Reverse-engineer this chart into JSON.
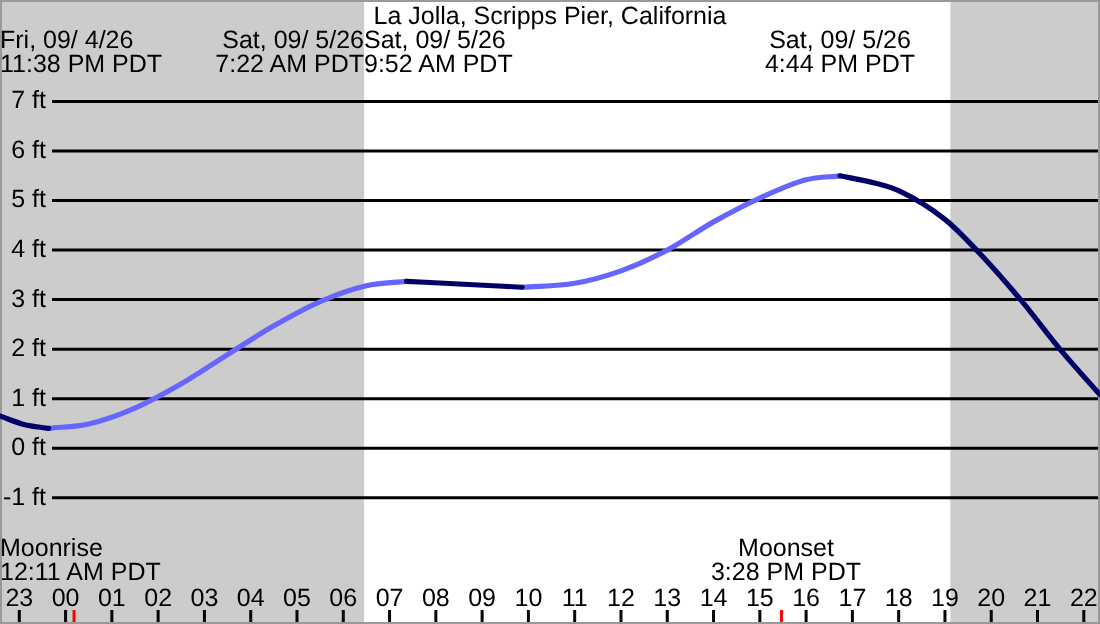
{
  "chart_data": {
    "type": "line",
    "title": "La Jolla, Scripps Pier, California",
    "xlim": [
      "--09-04T22:35",
      "--09-05T22:21"
    ],
    "ylim": [
      -3.55,
      9.05
    ],
    "xticks": [
      {
        "value": "--09-04T23:00",
        "label": "23"
      },
      {
        "value": "--09-05T00:00",
        "label": "00"
      },
      {
        "value": "--09-05T00:11",
        "label": null
      },
      {
        "value": "--09-05T01:00",
        "label": "01"
      },
      {
        "value": "--09-05T02:00",
        "label": "02"
      },
      {
        "value": "--09-05T03:00",
        "label": "03"
      },
      {
        "value": "--09-05T04:00",
        "label": "04"
      },
      {
        "value": "--09-05T05:00",
        "label": "05"
      },
      {
        "value": "--09-05T06:00",
        "label": "06"
      },
      {
        "value": "--09-05T07:00",
        "label": "07"
      },
      {
        "value": "--09-05T08:00",
        "label": "08"
      },
      {
        "value": "--09-05T09:00",
        "label": "09"
      },
      {
        "value": "--09-05T10:00",
        "label": "10"
      },
      {
        "value": "--09-05T11:00",
        "label": "11"
      },
      {
        "value": "--09-05T12:00",
        "label": "12"
      },
      {
        "value": "--09-05T13:00",
        "label": "13"
      },
      {
        "value": "--09-05T14:00",
        "label": "14"
      },
      {
        "value": "--09-05T15:00",
        "label": "15"
      },
      {
        "value": "--09-05T15:28",
        "label": null
      },
      {
        "value": "--09-05T16:00",
        "label": "16"
      },
      {
        "value": "--09-05T17:00",
        "label": "17"
      },
      {
        "value": "--09-05T18:00",
        "label": "18"
      },
      {
        "value": "--09-05T19:00",
        "label": "19"
      },
      {
        "value": "--09-05T20:00",
        "label": "20"
      },
      {
        "value": "--09-05T21:00",
        "label": "21"
      },
      {
        "value": "--09-05T22:00",
        "label": "22"
      }
    ],
    "yticks": [
      {
        "value": -1,
        "label": "-1 ft"
      },
      {
        "value": 0,
        "label": "0 ft"
      },
      {
        "value": 1,
        "label": "1 ft"
      },
      {
        "value": 2,
        "label": "2 ft"
      },
      {
        "value": 3,
        "label": "3 ft"
      },
      {
        "value": 4,
        "label": "4 ft"
      },
      {
        "value": 5,
        "label": "5 ft"
      },
      {
        "value": 6,
        "label": "6 ft"
      },
      {
        "value": 7,
        "label": "7 ft"
      }
    ],
    "grid": "y",
    "series": [
      {
        "color": "#000066",
        "x": [
          "--09-04T22:35",
          "--09-04T23:06",
          "--09-04T23:38",
          null,
          "--09-05T07:22",
          "--09-05T08:36",
          "--09-05T09:52",
          null,
          "--09-05T16:44",
          "--09-05T17:30",
          "--09-05T18:00",
          "--09-05T19:00",
          "--09-05T19:41",
          "--09-05T20:38",
          "--09-05T21:29",
          "--09-05T22:21"
        ],
        "values": [
          0.65,
          0.48,
          0.4,
          null,
          3.37,
          3.31,
          3.25,
          null,
          5.5,
          5.35,
          5.2,
          4.62,
          4.0,
          3.0,
          2.0,
          1.08
        ]
      },
      {
        "color": "#6666ff",
        "x": [
          "--09-04T23:38",
          "--09-05T00:30",
          "--09-05T01:30",
          "--09-05T02:30",
          "--09-05T03:30",
          "--09-05T04:30",
          "--09-05T05:30",
          "--09-05T06:30",
          "--09-05T07:22",
          null,
          "--09-05T09:52",
          "--09-05T11:00",
          "--09-05T12:00",
          "--09-05T13:00",
          "--09-05T14:00",
          "--09-05T15:00",
          "--09-05T16:00",
          "--09-05T16:44"
        ],
        "values": [
          0.4,
          0.49,
          0.81,
          1.3,
          1.89,
          2.47,
          2.96,
          3.28,
          3.37,
          null,
          3.25,
          3.33,
          3.58,
          4.0,
          4.57,
          5.05,
          5.42,
          5.5
        ]
      }
    ],
    "bands": [
      {
        "axis": "x",
        "from": "--09-04T22:35",
        "to": "--09-05T06:27",
        "color": "#cccccc"
      },
      {
        "axis": "x",
        "from": "--09-05T19:07",
        "to": "--09-05T22:21",
        "color": "#cccccc"
      }
    ],
    "annotations": [
      "Fri, 09/ 4/26\n11:38 PM PDT",
      "Sat, 09/ 5/26\n7:22 AM PDT",
      "Sat, 09/ 5/26\n9:52 AM PDT",
      "Sat, 09/ 5/26\n4:44 PM PDT",
      "Moonrise\n12:11 AM PDT",
      "Moonset\n3:28 PM PDT"
    ]
  }
}
